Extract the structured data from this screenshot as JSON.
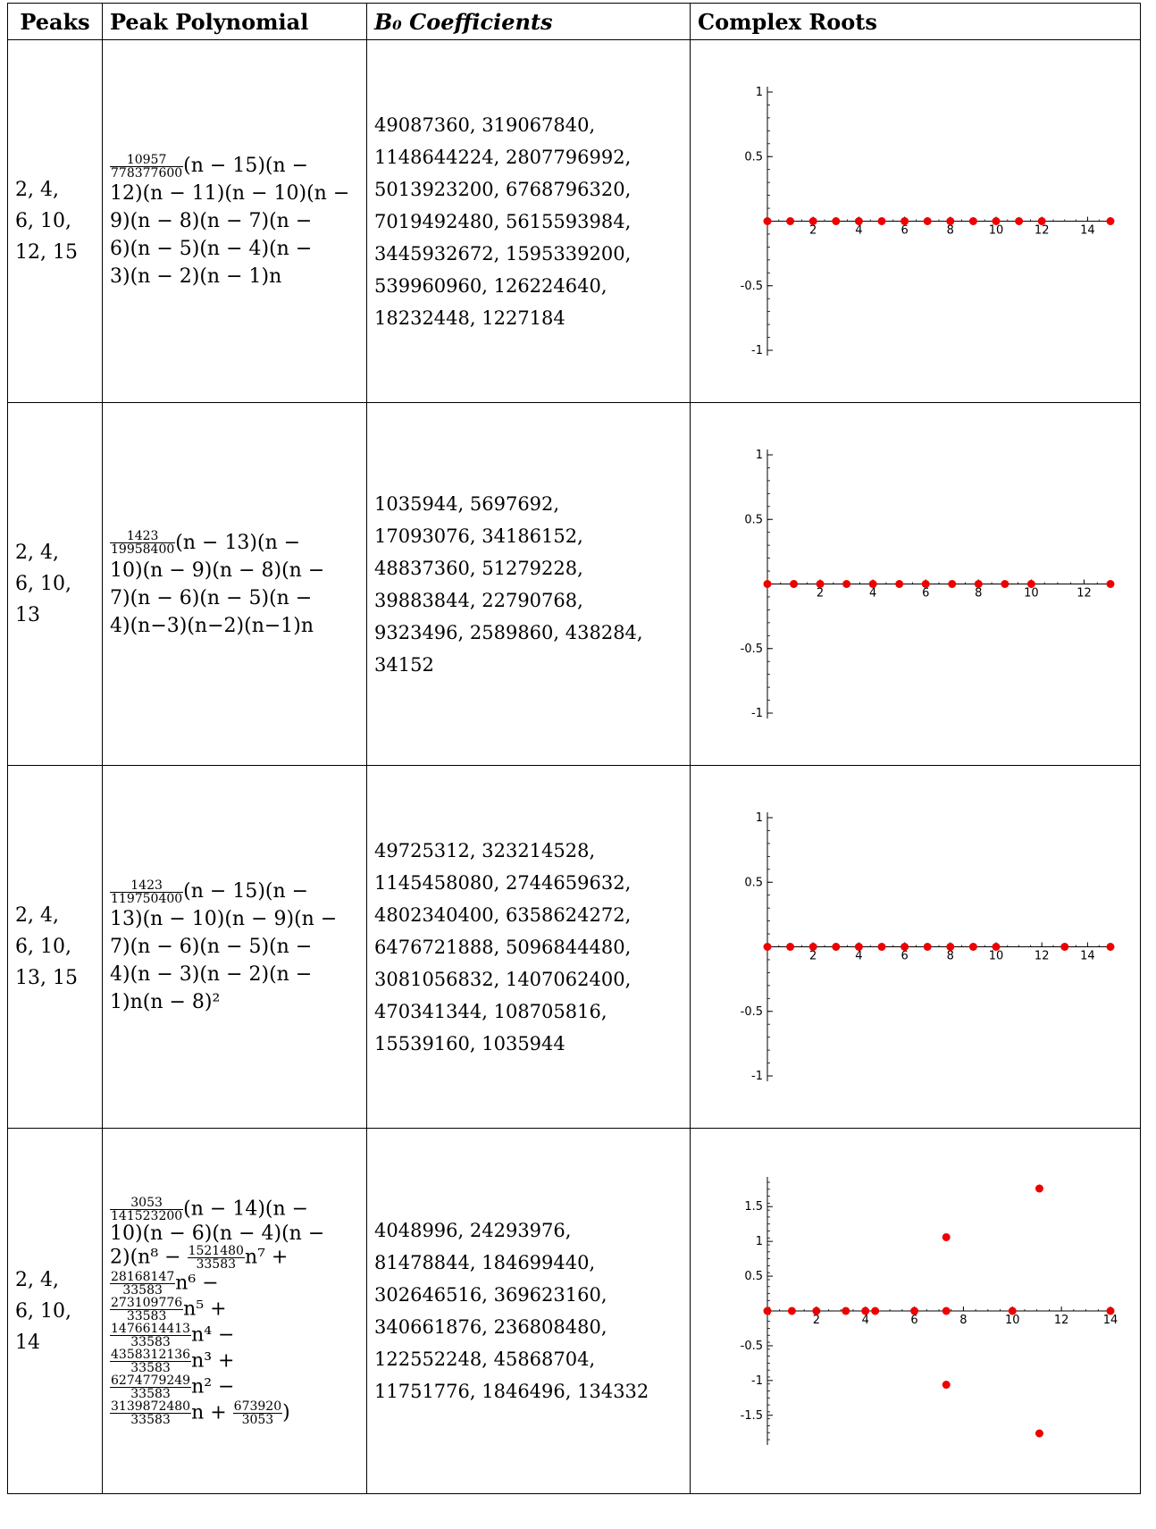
{
  "headers": {
    "peaks": "Peaks",
    "polynomial": "Peak Polynomial",
    "coefficients": "B₀ Coefficients",
    "roots": "Complex Roots"
  },
  "rows": [
    {
      "peaks": [
        "2, 4,",
        "6, 10,",
        "12, 15"
      ],
      "poly_lines": [
        "(n − 15)(n −",
        "12)(n − 11)(n − 10)(n −",
        "9)(n − 8)(n − 7)(n −",
        "6)(n − 5)(n − 4)(n −",
        "3)(n − 2)(n − 1)n"
      ],
      "poly_frac": {
        "num": "10957",
        "den": "778377600"
      },
      "coefficients": [
        "49087360, 319067840,",
        "1148644224, 2807796992,",
        "5013923200, 6768796320,",
        "7019492480, 5615593984,",
        "3445932672, 1595339200,",
        "539960960, 126224640,",
        "18232448, 1227184"
      ]
    },
    {
      "peaks": [
        "2, 4,",
        "6, 10,",
        "13"
      ],
      "poly_lines": [
        "(n − 13)(n −",
        "10)(n − 9)(n − 8)(n −",
        "7)(n − 6)(n − 5)(n −",
        "4)(n−3)(n−2)(n−1)n"
      ],
      "poly_frac": {
        "num": "1423",
        "den": "19958400"
      },
      "coefficients": [
        "1035944, 5697692,",
        "17093076, 34186152,",
        "48837360, 51279228,",
        "39883844, 22790768,",
        "9323496, 2589860, 438284,",
        "34152"
      ]
    },
    {
      "peaks": [
        "2, 4,",
        "6, 10,",
        "13, 15"
      ],
      "poly_lines": [
        "(n − 15)(n −",
        "13)(n − 10)(n − 9)(n −",
        "7)(n − 6)(n − 5)(n −",
        "4)(n − 3)(n − 2)(n −",
        "1)n(n − 8)²"
      ],
      "poly_frac": {
        "num": "1423",
        "den": "119750400"
      },
      "coefficients": [
        "49725312, 323214528,",
        "1145458080, 2744659632,",
        "4802340400, 6358624272,",
        "6476721888, 5096844480,",
        "3081056832, 1407062400,",
        "470341344, 108705816,",
        "15539160, 1035944"
      ]
    },
    {
      "peaks": [
        "2, 4,",
        "6, 10,",
        "14"
      ],
      "poly_frac": {
        "num": "3053",
        "den": "141523200"
      },
      "poly_lines_b": [
        {
          "pre": "",
          "frac": null,
          "text": "(n − 14)(n −"
        },
        {
          "pre": "",
          "frac": null,
          "text": "10)(n − 6)(n − 4)(n −"
        },
        {
          "pre": "2)(n⁸ − ",
          "frac": {
            "num": "1521480",
            "den": "33583"
          },
          "text": "n⁷ +"
        },
        {
          "pre": "",
          "frac": {
            "num": "28168147",
            "den": "33583"
          },
          "text": "n⁶ −"
        },
        {
          "pre": "",
          "frac": {
            "num": "273109776",
            "den": "33583"
          },
          "text": "n⁵ +"
        },
        {
          "pre": "",
          "frac": {
            "num": "1476614413",
            "den": "33583"
          },
          "text": "n⁴ −"
        },
        {
          "pre": "",
          "frac": {
            "num": "4358312136",
            "den": "33583"
          },
          "text": "n³ +"
        },
        {
          "pre": "",
          "frac": {
            "num": "6274779249",
            "den": "33583"
          },
          "text": "n² −"
        },
        {
          "pre": "",
          "frac": {
            "num": "3139872480",
            "den": "33583"
          },
          "text": "n + "
        }
      ],
      "poly_last_frac": {
        "num": "673920",
        "den": "3053"
      },
      "poly_close": ")",
      "coefficients": [
        "4048996, 24293976,",
        "81478844, 184699440,",
        "302646516, 369623160,",
        "340661876, 236808480,",
        "122552248, 45868704,",
        "11751776, 1846496, 134332"
      ]
    }
  ],
  "chart_data": [
    {
      "type": "scatter",
      "title": "",
      "xlabel": "",
      "ylabel": "",
      "xlim": [
        0,
        15
      ],
      "ylim": [
        -1,
        1
      ],
      "xticks": [
        2,
        4,
        6,
        8,
        10,
        12,
        14
      ],
      "yticks": [
        -1,
        -0.5,
        0.5,
        1
      ],
      "point_color": "#ee0000",
      "points": [
        [
          0,
          0
        ],
        [
          1,
          0
        ],
        [
          2,
          0
        ],
        [
          3,
          0
        ],
        [
          4,
          0
        ],
        [
          5,
          0
        ],
        [
          6,
          0
        ],
        [
          7,
          0
        ],
        [
          8,
          0
        ],
        [
          9,
          0
        ],
        [
          10,
          0
        ],
        [
          11,
          0
        ],
        [
          12,
          0
        ],
        [
          15,
          0
        ]
      ]
    },
    {
      "type": "scatter",
      "title": "",
      "xlabel": "",
      "ylabel": "",
      "xlim": [
        0,
        13
      ],
      "ylim": [
        -1,
        1
      ],
      "xticks": [
        2,
        4,
        6,
        8,
        10,
        12
      ],
      "yticks": [
        -1,
        -0.5,
        0.5,
        1
      ],
      "point_color": "#ee0000",
      "points": [
        [
          0,
          0
        ],
        [
          1,
          0
        ],
        [
          2,
          0
        ],
        [
          3,
          0
        ],
        [
          4,
          0
        ],
        [
          5,
          0
        ],
        [
          6,
          0
        ],
        [
          7,
          0
        ],
        [
          8,
          0
        ],
        [
          9,
          0
        ],
        [
          10,
          0
        ],
        [
          13,
          0
        ]
      ]
    },
    {
      "type": "scatter",
      "title": "",
      "xlabel": "",
      "ylabel": "",
      "xlim": [
        0,
        15
      ],
      "ylim": [
        -1,
        1
      ],
      "xticks": [
        2,
        4,
        6,
        8,
        10,
        12,
        14
      ],
      "yticks": [
        -1,
        -0.5,
        0.5,
        1
      ],
      "point_color": "#ee0000",
      "points": [
        [
          0,
          0
        ],
        [
          1,
          0
        ],
        [
          2,
          0
        ],
        [
          3,
          0
        ],
        [
          4,
          0
        ],
        [
          5,
          0
        ],
        [
          6,
          0
        ],
        [
          7,
          0
        ],
        [
          8,
          0
        ],
        [
          9,
          0
        ],
        [
          10,
          0
        ],
        [
          13,
          0
        ],
        [
          15,
          0
        ]
      ]
    },
    {
      "type": "scatter",
      "title": "",
      "xlabel": "",
      "ylabel": "",
      "xlim": [
        0,
        14
      ],
      "ylim": [
        -1.85,
        1.85
      ],
      "xticks": [
        2,
        4,
        6,
        8,
        10,
        12,
        14
      ],
      "yticks": [
        -1.5,
        -1,
        -0.5,
        0.5,
        1,
        1.5
      ],
      "point_color": "#ee0000",
      "points": [
        [
          0,
          0
        ],
        [
          1,
          0
        ],
        [
          2,
          0
        ],
        [
          3.2,
          0
        ],
        [
          4,
          0
        ],
        [
          4.4,
          0
        ],
        [
          6,
          0
        ],
        [
          7.3,
          0
        ],
        [
          10,
          0
        ],
        [
          14,
          0
        ],
        [
          7.3,
          1.06
        ],
        [
          7.3,
          -1.06
        ],
        [
          11.1,
          1.76
        ],
        [
          11.1,
          -1.76
        ]
      ]
    }
  ]
}
